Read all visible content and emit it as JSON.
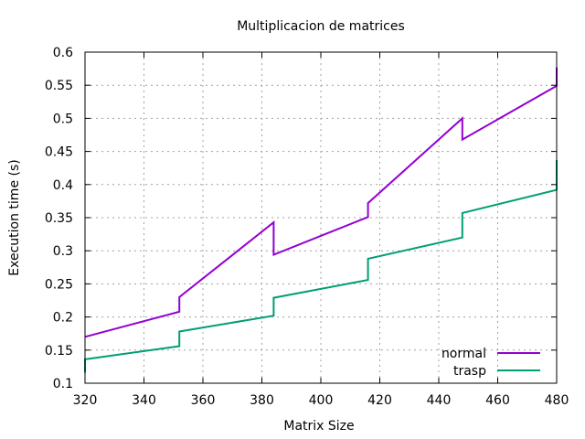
{
  "chart_data": {
    "type": "line",
    "title": "Multiplicacion de matrices",
    "xlabel": "Matrix Size",
    "ylabel": "Execution time (s)",
    "xlim": [
      320,
      480
    ],
    "ylim": [
      0.1,
      0.6
    ],
    "xticks": [
      "320",
      "340",
      "360",
      "380",
      "400",
      "420",
      "440",
      "460",
      "480"
    ],
    "yticks": [
      "0.1",
      "0.15",
      "0.2",
      "0.25",
      "0.3",
      "0.35",
      "0.4",
      "0.45",
      "0.5",
      "0.55",
      "0.6"
    ],
    "grid": true,
    "legend_position": "bottom-right",
    "series": [
      {
        "name": "normal",
        "color": "#9400d3",
        "points": [
          [
            320,
            0.17
          ],
          [
            352,
            0.208
          ],
          [
            352,
            0.23
          ],
          [
            384,
            0.343
          ],
          [
            384,
            0.294
          ],
          [
            416,
            0.351
          ],
          [
            416,
            0.372
          ],
          [
            448,
            0.5
          ],
          [
            448,
            0.468
          ],
          [
            480,
            0.549
          ],
          [
            480,
            0.577
          ]
        ]
      },
      {
        "name": "trasp",
        "color": "#009e73",
        "points": [
          [
            320,
            0.116
          ],
          [
            320,
            0.136
          ],
          [
            352,
            0.156
          ],
          [
            352,
            0.178
          ],
          [
            384,
            0.202
          ],
          [
            384,
            0.229
          ],
          [
            416,
            0.256
          ],
          [
            416,
            0.288
          ],
          [
            448,
            0.32
          ],
          [
            448,
            0.357
          ],
          [
            480,
            0.392
          ],
          [
            480,
            0.437
          ]
        ]
      }
    ]
  }
}
